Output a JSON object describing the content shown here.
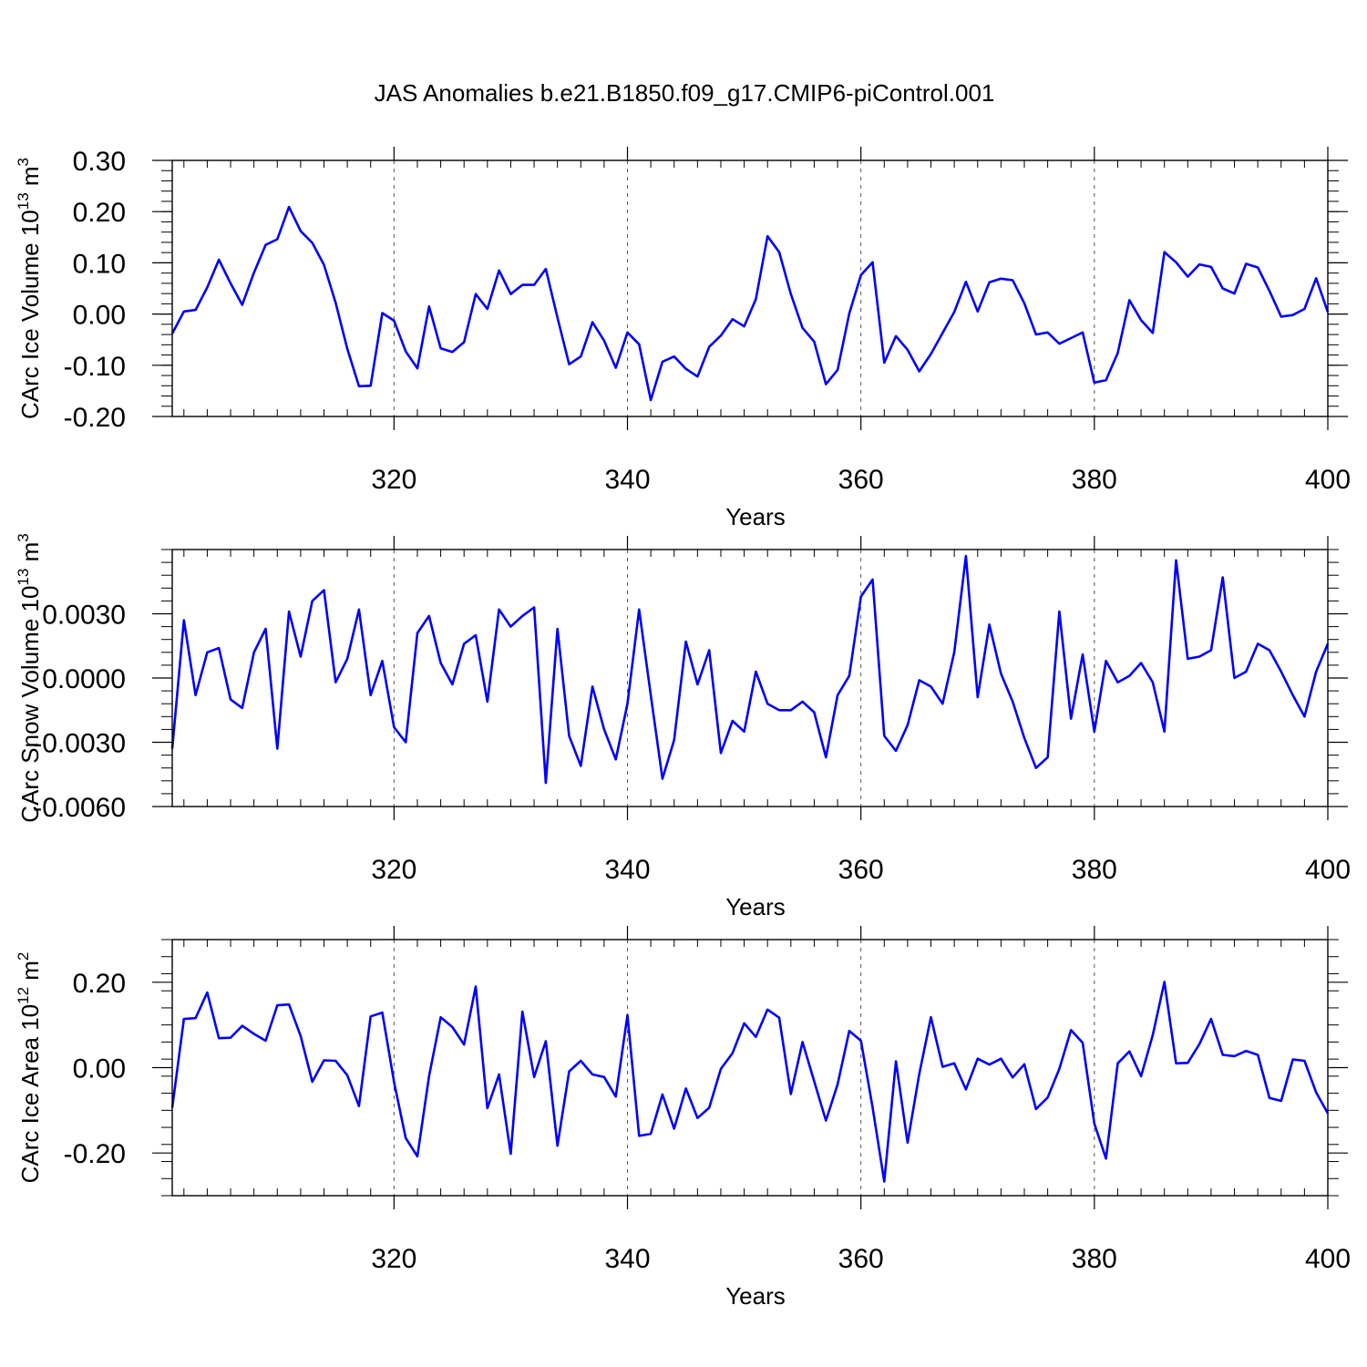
{
  "figure_title": "JAS Anomalies b.e21.B1850.f09_g17.CMIP6-piControl.001",
  "colors": {
    "line": "#0000ff",
    "axis": "#000000",
    "grid": "#555555",
    "background": "#ffffff"
  },
  "chart_data": [
    {
      "type": "line",
      "xlabel": "Years",
      "ylabel_main": "CArc Ice Volume 10",
      "ylabel_exp": "13",
      "ylabel_unit": " m",
      "ylabel_unit_exp": "3",
      "xlim": [
        301,
        400
      ],
      "ylim": [
        -0.2,
        0.3
      ],
      "x_ticks": [
        320,
        340,
        360,
        380,
        400
      ],
      "x_tick_labels": [
        "320",
        "340",
        "360",
        "380",
        "400"
      ],
      "y_ticks": [
        -0.2,
        -0.1,
        0.0,
        0.1,
        0.2,
        0.3
      ],
      "y_tick_labels": [
        "-0.20",
        "-0.10",
        "0.00",
        "0.10",
        "0.20",
        "0.30"
      ],
      "x_start": 301,
      "values": [
        -0.038,
        0.005,
        0.008,
        0.052,
        0.106,
        0.06,
        0.018,
        0.081,
        0.135,
        0.146,
        0.209,
        0.162,
        0.139,
        0.096,
        0.022,
        -0.068,
        -0.141,
        -0.14,
        0.002,
        -0.013,
        -0.073,
        -0.106,
        0.015,
        -0.067,
        -0.074,
        -0.055,
        0.039,
        0.01,
        0.085,
        0.039,
        0.057,
        0.057,
        0.088,
        -0.007,
        -0.098,
        -0.083,
        -0.016,
        -0.052,
        -0.105,
        -0.036,
        -0.059,
        -0.168,
        -0.093,
        -0.083,
        -0.107,
        -0.122,
        -0.064,
        -0.042,
        -0.01,
        -0.024,
        0.029,
        0.152,
        0.121,
        0.039,
        -0.027,
        -0.054,
        -0.137,
        -0.109,
        0.001,
        0.076,
        0.101,
        -0.095,
        -0.043,
        -0.07,
        -0.112,
        -0.078,
        -0.037,
        0.004,
        0.063,
        0.005,
        0.062,
        0.069,
        0.066,
        0.021,
        -0.04,
        -0.036,
        -0.058,
        -0.047,
        -0.036,
        -0.134,
        -0.129,
        -0.076,
        0.027,
        -0.012,
        -0.037,
        0.121,
        0.101,
        0.073,
        0.097,
        0.092,
        0.05,
        0.04,
        0.098,
        0.091,
        0.045,
        -0.005,
        -0.002,
        0.01,
        0.07,
        0.004
      ]
    },
    {
      "type": "line",
      "xlabel": "Years",
      "ylabel_main": "CArc Snow Volume 10",
      "ylabel_exp": "13",
      "ylabel_unit": " m",
      "ylabel_unit_exp": "3",
      "xlim": [
        301,
        400
      ],
      "ylim": [
        -0.006,
        0.006
      ],
      "x_ticks": [
        320,
        340,
        360,
        380,
        400
      ],
      "x_tick_labels": [
        "320",
        "340",
        "360",
        "380",
        "400"
      ],
      "y_ticks": [
        -0.006,
        -0.003,
        0.0,
        0.003
      ],
      "y_tick_labels": [
        "-0.0060",
        "-0.0030",
        "0.0000",
        "0.0030"
      ],
      "x_start": 301,
      "values": [
        -0.0033,
        0.0027,
        -0.0008,
        0.0012,
        0.0014,
        -0.001,
        -0.0014,
        0.0012,
        0.0023,
        -0.0033,
        0.0031,
        0.001,
        0.0036,
        0.0041,
        -0.0002,
        0.0009,
        0.0032,
        -0.0008,
        0.0008,
        -0.0023,
        -0.003,
        0.0021,
        0.0029,
        0.0007,
        -0.0003,
        0.0016,
        0.002,
        -0.0011,
        0.0032,
        0.0024,
        0.0029,
        0.0033,
        -0.0049,
        0.0023,
        -0.0027,
        -0.0041,
        -0.0004,
        -0.0024,
        -0.0038,
        -0.0012,
        0.0032,
        -0.0008,
        -0.0047,
        -0.0029,
        0.0017,
        -0.0003,
        0.0013,
        -0.0035,
        -0.002,
        -0.0025,
        0.0003,
        -0.0012,
        -0.0015,
        -0.0015,
        -0.0011,
        -0.0016,
        -0.0037,
        -0.0008,
        0.0001,
        0.0038,
        0.0046,
        -0.0027,
        -0.0034,
        -0.0022,
        -0.0001,
        -0.0004,
        -0.0012,
        0.0012,
        0.0057,
        -0.0009,
        0.0025,
        0.0002,
        -0.0011,
        -0.0028,
        -0.0042,
        -0.0037,
        0.0031,
        -0.0019,
        0.0011,
        -0.0025,
        0.0008,
        -0.0002,
        0.0001,
        0.0007,
        -0.0002,
        -0.0025,
        0.0055,
        0.0009,
        0.001,
        0.0013,
        0.0047,
        0.0,
        0.0003,
        0.0016,
        0.0013,
        0.0003,
        -0.0008,
        -0.0018,
        0.0003,
        0.0016
      ]
    },
    {
      "type": "line",
      "xlabel": "Years",
      "ylabel_main": "CArc Ice Area 10",
      "ylabel_exp": "12",
      "ylabel_unit": " m",
      "ylabel_unit_exp": "2",
      "xlim": [
        301,
        400
      ],
      "ylim": [
        -0.3,
        0.3
      ],
      "x_ticks": [
        320,
        340,
        360,
        380,
        400
      ],
      "x_tick_labels": [
        "320",
        "340",
        "360",
        "380",
        "400"
      ],
      "y_ticks": [
        -0.2,
        0.0,
        0.2
      ],
      "y_tick_labels": [
        "-0.20",
        "0.00",
        "0.20"
      ],
      "x_start": 301,
      "values": [
        -0.094,
        0.114,
        0.116,
        0.176,
        0.069,
        0.07,
        0.098,
        0.079,
        0.063,
        0.146,
        0.148,
        0.074,
        -0.033,
        0.017,
        0.016,
        -0.018,
        -0.09,
        0.12,
        0.129,
        -0.034,
        -0.165,
        -0.208,
        -0.02,
        0.118,
        0.095,
        0.054,
        0.19,
        -0.095,
        -0.016,
        -0.202,
        0.131,
        -0.022,
        0.062,
        -0.183,
        -0.009,
        0.016,
        -0.016,
        -0.022,
        -0.068,
        0.123,
        -0.16,
        -0.155,
        -0.063,
        -0.143,
        -0.049,
        -0.118,
        -0.094,
        -0.003,
        0.034,
        0.104,
        0.072,
        0.136,
        0.117,
        -0.062,
        0.06,
        -0.032,
        -0.124,
        -0.039,
        0.086,
        0.063,
        -0.093,
        -0.267,
        0.015,
        -0.176,
        -0.015,
        0.118,
        0.002,
        0.01,
        -0.051,
        0.021,
        0.007,
        0.021,
        -0.023,
        0.008,
        -0.097,
        -0.07,
        -0.003,
        0.088,
        0.058,
        -0.131,
        -0.213,
        0.01,
        0.038,
        -0.02,
        0.076,
        0.201,
        0.01,
        0.011,
        0.055,
        0.114,
        0.03,
        0.027,
        0.039,
        0.03,
        -0.071,
        -0.078,
        0.019,
        0.016,
        -0.058,
        -0.107
      ]
    }
  ]
}
